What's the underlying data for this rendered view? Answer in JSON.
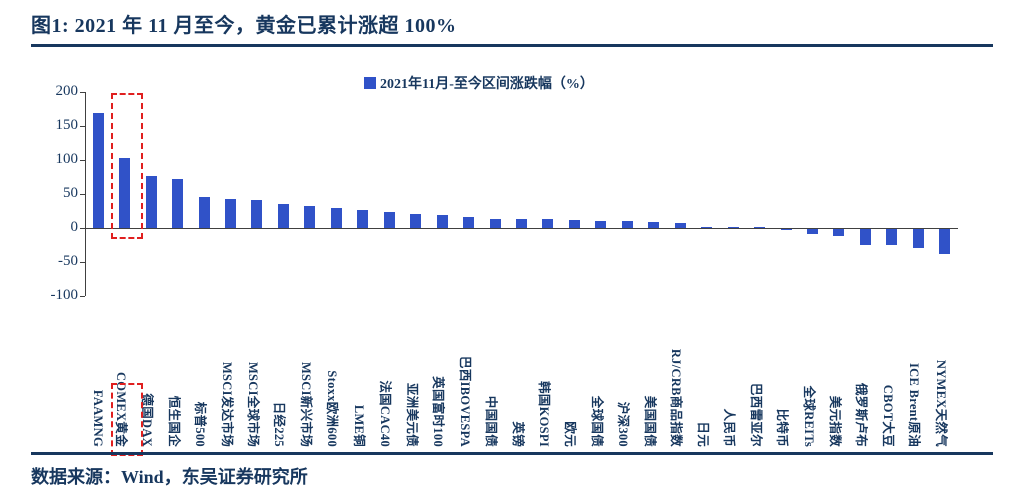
{
  "figure": {
    "title": "图1:  2021 年 11 月至今，黄金已累计涨超 100%",
    "source": "数据来源：Wind，东吴证券研究所"
  },
  "chart_data": {
    "type": "bar",
    "legend": "2021年11月-至今区间涨跌幅（%）",
    "legend_position": "top-center",
    "bar_color": "#3052C8",
    "categories": [
      "FAAMNG",
      "COMEX黄金",
      "德国DAX",
      "恒生国企",
      "标普500",
      "MSCI发达市场",
      "MSCI全球市场",
      "日经225",
      "MSCI新兴市场",
      "Stoxx欧洲600",
      "LME铜",
      "法国CAC40",
      "亚洲美元债",
      "英国富时100",
      "巴西IBOVESPA",
      "中国国债",
      "英镑",
      "韩国KOSPI",
      "欧元",
      "全球国债",
      "沪深300",
      "美国国债",
      "RJ/CRB商品指数",
      "日元",
      "人民币",
      "巴西雷亚尔",
      "比特币",
      "全球REITs",
      "美元指数",
      "俄罗斯卢布",
      "CBOT大豆",
      "ICE Brent原油",
      "NYMEX天然气"
    ],
    "values": [
      170,
      103,
      77,
      72,
      46,
      43,
      41,
      36,
      32,
      29,
      27,
      24,
      21,
      19,
      16,
      14,
      13,
      13,
      12,
      11,
      10,
      9,
      7,
      1,
      0.5,
      0.3,
      -0.5,
      -8,
      -10,
      -23,
      -23,
      -28,
      -37
    ],
    "ylim": [
      -100,
      200
    ],
    "yticks": [
      200,
      150,
      100,
      50,
      0,
      -50,
      -100
    ],
    "grid": false,
    "highlight": {
      "category": "COMEX黄金",
      "style": "red dash-dot box around bar and around axis label"
    }
  },
  "colors": {
    "navy": "#17375E",
    "bar_blue": "#3052C8",
    "highlight_red": "#E01F1F",
    "axis_line": "#404040"
  }
}
